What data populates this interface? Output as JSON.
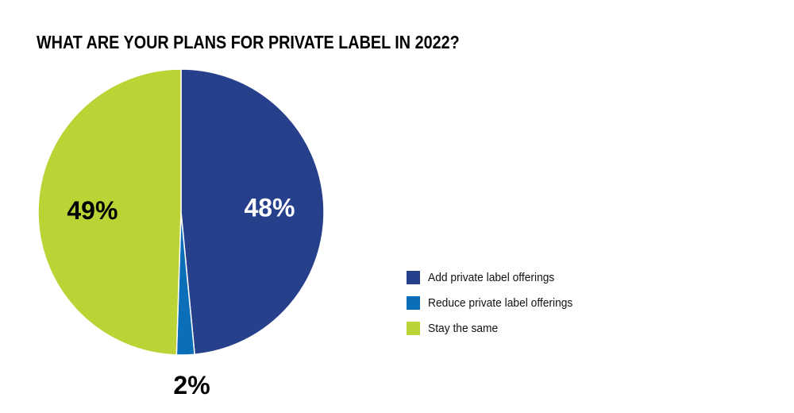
{
  "chart_data": {
    "type": "pie",
    "title": "WHAT ARE YOUR PLANS FOR PRIVATE LABEL IN 2022?",
    "categories": [
      "Add private label offerings",
      "Reduce private label offerings",
      "Stay the same"
    ],
    "values": [
      48,
      2,
      49
    ],
    "value_labels": [
      "48%",
      "2%",
      "49%"
    ],
    "colors": [
      "#27408b",
      "#0a6fb8",
      "#bcd335"
    ],
    "label_colors": [
      "#ffffff",
      "#000000",
      "#000000"
    ],
    "legend_placement": "right"
  }
}
